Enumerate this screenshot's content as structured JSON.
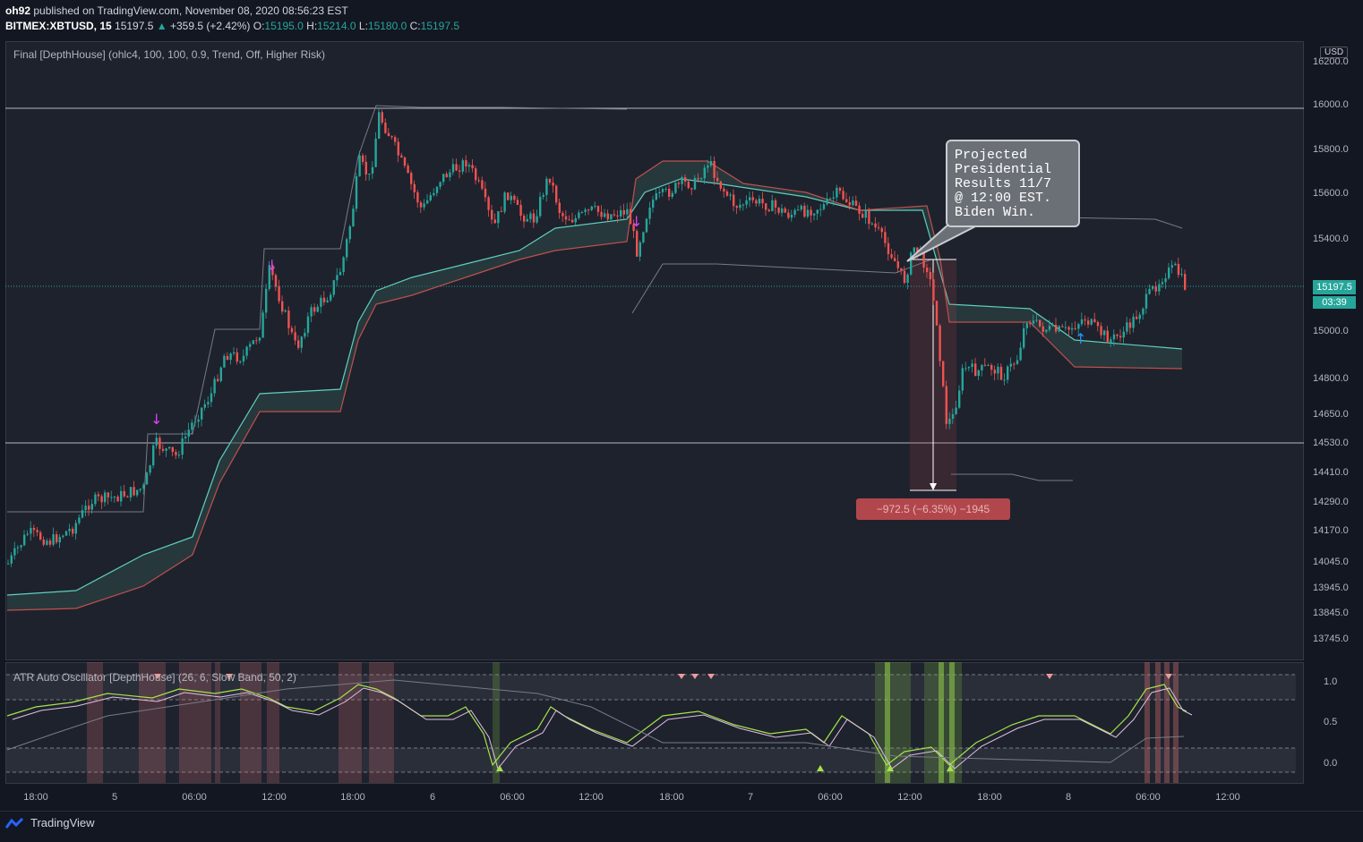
{
  "header": {
    "author": "oh92",
    "published_text": "published on TradingView.com, November 08, 2020 08:56:23 EST",
    "symbol": "BITMEX:XBTUSD, 15",
    "last": "15197.5",
    "change": "+359.5 (+2.42%)",
    "o_label": "O:",
    "o": "15195.0",
    "h_label": "H:",
    "h": "15214.0",
    "l_label": "L:",
    "l": "15180.0",
    "c_label": "C:",
    "c": "15197.5"
  },
  "main_indicator": "Final [DepthHouse] (ohlc4, 100, 100, 0.9, Trend, Off, Higher Risk)",
  "sub_indicator": "ATR Auto Oscillator [DepthHouse] (26, 6, Slow Band, 50, 2)",
  "currency": "USD",
  "price_tag": "15197.5",
  "time_tag": "03:39",
  "price_labels": [
    "16200.0",
    "16000.0",
    "15800.0",
    "15600.0",
    "15400.0",
    "15000.0",
    "14800.0",
    "14650.0",
    "14530.0",
    "14410.0",
    "14290.0",
    "14170.0",
    "14045.0",
    "13945.0",
    "13845.0",
    "13745.0"
  ],
  "osc_labels": [
    "1.0",
    "0.5",
    "0.0"
  ],
  "time_labels": [
    "18:00",
    "5",
    "06:00",
    "12:00",
    "18:00",
    "6",
    "06:00",
    "12:00",
    "18:00",
    "7",
    "06:00",
    "12:00",
    "18:00",
    "8",
    "06:00",
    "12:00"
  ],
  "callout_text": "Projected\nPresidential\nResults 11/7\n@ 12:00 EST.\nBiden Win.",
  "measure_text": "−972.5 (−6.35%) −1945",
  "footer_brand": "TradingView",
  "colors": {
    "up": "#26a69a",
    "down": "#ef5350",
    "band_up": "#5fcfbf",
    "band_down": "#c0504d",
    "osc": "#a5e34a",
    "bg": "#1e222d"
  }
}
